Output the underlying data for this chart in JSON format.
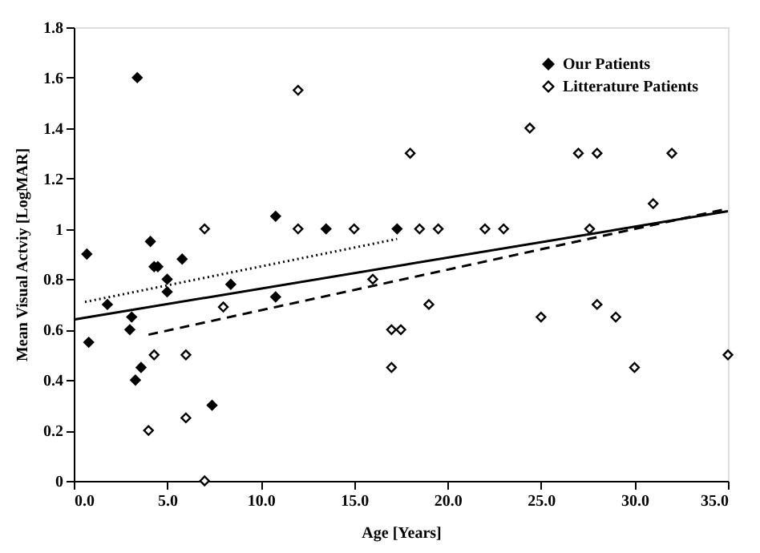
{
  "chart_data": {
    "type": "scatter",
    "xlabel": "Age [Years]",
    "ylabel": "Mean Visual Actviy [LogMAR]",
    "xlim": [
      0,
      35
    ],
    "xticks": [
      {
        "value": 0,
        "label": "0.0"
      },
      {
        "value": 5,
        "label": "5.0"
      },
      {
        "value": 10,
        "label": "10.0"
      },
      {
        "value": 15,
        "label": "15.0"
      },
      {
        "value": 20,
        "label": "20.0"
      },
      {
        "value": 25,
        "label": "25.0"
      },
      {
        "value": 30,
        "label": "30.0"
      },
      {
        "value": 35,
        "label": "35.0"
      }
    ],
    "ylim": [
      0,
      1.8
    ],
    "yticks": [
      0,
      0.2,
      0.4,
      0.6,
      0.8,
      1,
      1.2,
      1.4,
      1.6,
      1.8
    ],
    "grid": false,
    "legend": "top right",
    "marker": "diamond",
    "series": [
      {
        "name": "Our Patients",
        "color": "#000000",
        "x": [
          0.7,
          0.8,
          1.8,
          3.4,
          3.1,
          3.0,
          3.6,
          3.3,
          4.1,
          4.3,
          4.5,
          5.0,
          5.0,
          5.8,
          7.4,
          8.4,
          10.8,
          10.8,
          13.5,
          17.3
        ],
        "values": [
          0.9,
          0.55,
          0.7,
          1.6,
          0.65,
          0.6,
          0.45,
          0.4,
          0.95,
          0.85,
          0.85,
          0.8,
          0.75,
          0.88,
          0.3,
          0.78,
          1.05,
          0.73,
          1.0,
          1.0
        ]
      },
      {
        "name": "Litterature Patients",
        "color": "#ffffff",
        "x": [
          7.0,
          8.0,
          4.3,
          6.0,
          4.0,
          6.0,
          7.0,
          12.0,
          12.0,
          15.0,
          16.0,
          17.0,
          17.5,
          17.0,
          18.0,
          18.5,
          19.0,
          19.5,
          22.0,
          23.0,
          24.4,
          25.0,
          27.0,
          28.0,
          27.6,
          28.0,
          29.0,
          30.0,
          31.0,
          32.0,
          35.0
        ],
        "values": [
          1.0,
          0.69,
          0.5,
          0.5,
          0.2,
          0.25,
          0.0,
          1.55,
          1.0,
          1.0,
          0.8,
          0.6,
          0.6,
          0.45,
          1.3,
          1.0,
          0.7,
          1.0,
          1.0,
          1.0,
          1.4,
          0.65,
          1.3,
          1.3,
          1.0,
          0.7,
          0.65,
          0.45,
          1.1,
          1.3,
          0.5
        ]
      },
      {
        "type": "line",
        "marker": "none",
        "color": "#000000",
        "line_style": "solid",
        "x": [
          0,
          35
        ],
        "values": [
          0.64,
          1.07
        ]
      },
      {
        "type": "line",
        "marker": "none",
        "color": "#000000",
        "line_style": "dashed",
        "x": [
          4,
          35
        ],
        "values": [
          0.58,
          1.08
        ]
      },
      {
        "type": "line",
        "marker": "none",
        "color": "#000000",
        "line_style": "dotted",
        "x": [
          0.6,
          17.3
        ],
        "values": [
          0.71,
          0.96
        ]
      }
    ]
  }
}
